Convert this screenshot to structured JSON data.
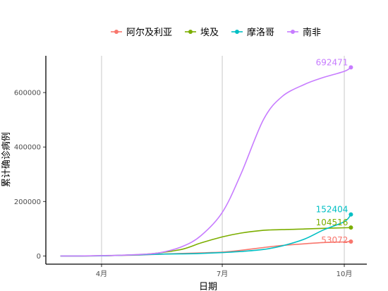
{
  "chart_data": {
    "type": "line",
    "xlabel": "日期",
    "ylabel": "累计确诊病例",
    "x_tick_labels": [
      "4月",
      "7月",
      "10月"
    ],
    "y_ticks": [
      0,
      200000,
      400000,
      600000
    ],
    "y_tick_labels": [
      "0",
      "200000",
      "400000",
      "600000"
    ],
    "ylim": [
      -30000,
      735000
    ],
    "grid": "major vertical lines only",
    "legend_position": "top",
    "x_dates": [
      "2020-03-01",
      "2020-03-15",
      "2020-04-01",
      "2020-04-15",
      "2020-05-01",
      "2020-05-15",
      "2020-06-01",
      "2020-06-15",
      "2020-07-01",
      "2020-07-15",
      "2020-08-01",
      "2020-08-15",
      "2020-09-01",
      "2020-09-15",
      "2020-10-01",
      "2020-10-06"
    ],
    "series": [
      {
        "name": "阿尔及利亚",
        "color": "#F8766D",
        "values": [
          0,
          200,
          1000,
          2300,
          4000,
          6500,
          9400,
          11500,
          14300,
          20800,
          31000,
          38600,
          44800,
          49400,
          51700,
          53072
        ],
        "end_label": "53072"
      },
      {
        "name": "埃及",
        "color": "#7CAE00",
        "values": [
          0,
          150,
          700,
          2500,
          5500,
          11700,
          25000,
          48000,
          70000,
          84000,
          94100,
          96900,
          99100,
          101500,
          103500,
          104516
        ],
        "end_label": "104516"
      },
      {
        "name": "摩洛哥",
        "color": "#00BFC4",
        "values": [
          0,
          100,
          700,
          2500,
          4600,
          6900,
          7800,
          9300,
          12600,
          16500,
          24000,
          37000,
          62000,
          95000,
          126000,
          152404
        ],
        "end_label": "152404"
      },
      {
        "name": "南非",
        "color": "#C77CFF",
        "values": [
          0,
          50,
          1400,
          2600,
          6000,
          12000,
          35000,
          75000,
          160000,
          300000,
          500000,
          585000,
          630000,
          655000,
          678000,
          692471
        ],
        "end_label": "692471"
      }
    ]
  }
}
